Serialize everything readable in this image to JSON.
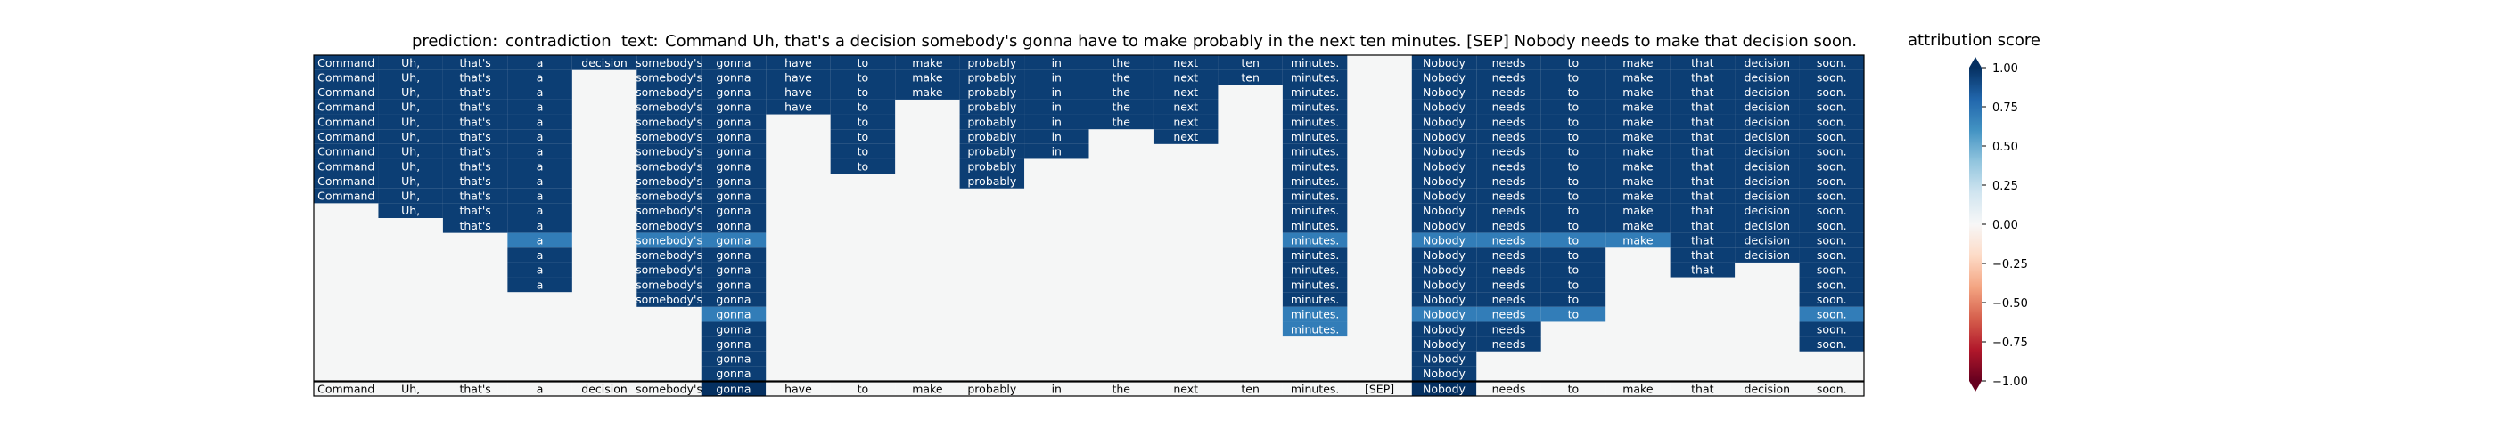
{
  "chart_data": {
    "type": "heatmap",
    "title": {
      "prediction_label": "prediction:",
      "prediction": "contradiction",
      "text_label": "text:",
      "text": "Command Uh, that's a decision somebody's gonna have to make probably in the next ten minutes. [SEP] Nobody needs to make that decision soon."
    },
    "tokens": [
      "Command",
      "Uh,",
      "that's",
      "a",
      "decision",
      "somebody's",
      "gonna",
      "have",
      "to",
      "make",
      "probably",
      "in",
      "the",
      "next",
      "ten",
      "minutes.",
      "[SEP]",
      "Nobody",
      "needs",
      "to",
      "make",
      "that",
      "decision",
      "soon."
    ],
    "rows": [
      [
        0.95,
        0.95,
        0.95,
        0.95,
        0.95,
        0.95,
        0.95,
        0.95,
        0.95,
        0.95,
        0.95,
        0.95,
        0.95,
        0.95,
        0.95,
        0.95,
        null,
        0.95,
        0.95,
        0.95,
        0.95,
        0.95,
        0.95,
        0.95
      ],
      [
        0.95,
        0.95,
        0.95,
        0.95,
        null,
        0.95,
        0.95,
        0.95,
        0.95,
        0.95,
        0.95,
        0.95,
        0.95,
        0.95,
        0.95,
        0.95,
        null,
        0.95,
        0.95,
        0.95,
        0.95,
        0.95,
        0.95,
        0.95
      ],
      [
        0.95,
        0.95,
        0.95,
        0.95,
        null,
        0.95,
        0.95,
        0.95,
        0.95,
        0.95,
        0.95,
        0.95,
        0.95,
        0.95,
        null,
        0.95,
        null,
        0.95,
        0.95,
        0.95,
        0.95,
        0.95,
        0.95,
        0.95
      ],
      [
        0.95,
        0.95,
        0.95,
        0.95,
        null,
        0.95,
        0.95,
        0.95,
        0.95,
        null,
        0.95,
        0.95,
        0.95,
        0.95,
        null,
        0.95,
        null,
        0.95,
        0.95,
        0.95,
        0.95,
        0.95,
        0.95,
        0.95
      ],
      [
        0.95,
        0.95,
        0.95,
        0.95,
        null,
        0.95,
        0.95,
        null,
        0.95,
        null,
        0.95,
        0.95,
        0.95,
        0.95,
        null,
        0.95,
        null,
        0.95,
        0.95,
        0.95,
        0.95,
        0.95,
        0.95,
        0.95
      ],
      [
        0.95,
        0.95,
        0.95,
        0.95,
        null,
        0.95,
        0.95,
        null,
        0.95,
        null,
        0.95,
        0.95,
        null,
        0.95,
        null,
        0.95,
        null,
        0.95,
        0.95,
        0.95,
        0.95,
        0.95,
        0.95,
        0.95
      ],
      [
        0.95,
        0.95,
        0.95,
        0.95,
        null,
        0.95,
        0.95,
        null,
        0.95,
        null,
        0.95,
        0.95,
        null,
        null,
        null,
        0.95,
        null,
        0.95,
        0.95,
        0.95,
        0.95,
        0.95,
        0.95,
        0.95
      ],
      [
        0.95,
        0.95,
        0.95,
        0.95,
        null,
        0.95,
        0.95,
        null,
        0.95,
        null,
        0.95,
        null,
        null,
        null,
        null,
        0.95,
        null,
        0.95,
        0.95,
        0.95,
        0.95,
        0.95,
        0.95,
        0.95
      ],
      [
        0.95,
        0.95,
        0.95,
        0.95,
        null,
        0.95,
        0.95,
        null,
        null,
        null,
        0.95,
        null,
        null,
        null,
        null,
        0.95,
        null,
        0.95,
        0.95,
        0.95,
        0.95,
        0.95,
        0.95,
        0.95
      ],
      [
        0.95,
        0.95,
        0.95,
        0.95,
        null,
        0.95,
        0.95,
        null,
        null,
        null,
        null,
        null,
        null,
        null,
        null,
        0.95,
        null,
        0.95,
        0.95,
        0.95,
        0.95,
        0.95,
        0.95,
        0.95
      ],
      [
        null,
        0.95,
        0.95,
        0.95,
        null,
        0.95,
        0.95,
        null,
        null,
        null,
        null,
        null,
        null,
        null,
        null,
        0.95,
        null,
        0.95,
        0.95,
        0.95,
        0.95,
        0.95,
        0.95,
        0.95
      ],
      [
        null,
        null,
        0.95,
        0.95,
        null,
        0.95,
        0.95,
        null,
        null,
        null,
        null,
        null,
        null,
        null,
        null,
        0.95,
        null,
        0.95,
        0.95,
        0.95,
        0.95,
        0.95,
        0.95,
        0.95
      ],
      [
        null,
        null,
        null,
        0.7,
        null,
        0.7,
        0.7,
        null,
        null,
        null,
        null,
        null,
        null,
        null,
        null,
        0.7,
        null,
        0.7,
        0.7,
        0.7,
        0.7,
        0.95,
        0.95,
        0.95
      ],
      [
        null,
        null,
        null,
        0.95,
        null,
        0.95,
        0.95,
        null,
        null,
        null,
        null,
        null,
        null,
        null,
        null,
        0.95,
        null,
        0.95,
        0.95,
        0.95,
        null,
        0.95,
        0.95,
        0.95
      ],
      [
        null,
        null,
        null,
        0.95,
        null,
        0.95,
        0.95,
        null,
        null,
        null,
        null,
        null,
        null,
        null,
        null,
        0.95,
        null,
        0.95,
        0.95,
        0.95,
        null,
        0.95,
        null,
        0.95
      ],
      [
        null,
        null,
        null,
        0.95,
        null,
        0.95,
        0.95,
        null,
        null,
        null,
        null,
        null,
        null,
        null,
        null,
        0.95,
        null,
        0.95,
        0.95,
        0.95,
        null,
        null,
        null,
        0.95
      ],
      [
        null,
        null,
        null,
        null,
        null,
        0.95,
        0.95,
        null,
        null,
        null,
        null,
        null,
        null,
        null,
        null,
        0.95,
        null,
        0.95,
        0.95,
        0.95,
        null,
        null,
        null,
        0.95
      ],
      [
        null,
        null,
        null,
        null,
        null,
        null,
        0.7,
        null,
        null,
        null,
        null,
        null,
        null,
        null,
        null,
        0.7,
        null,
        0.7,
        0.7,
        0.7,
        null,
        null,
        null,
        0.7
      ],
      [
        null,
        null,
        null,
        null,
        null,
        null,
        0.95,
        null,
        null,
        null,
        null,
        null,
        null,
        null,
        null,
        0.7,
        null,
        0.95,
        0.95,
        null,
        null,
        null,
        null,
        0.95
      ],
      [
        null,
        null,
        null,
        null,
        null,
        null,
        0.95,
        null,
        null,
        null,
        null,
        null,
        null,
        null,
        null,
        null,
        null,
        0.95,
        0.95,
        null,
        null,
        null,
        null,
        0.95
      ],
      [
        null,
        null,
        null,
        null,
        null,
        null,
        0.95,
        null,
        null,
        null,
        null,
        null,
        null,
        null,
        null,
        null,
        null,
        0.95,
        null,
        null,
        null,
        null,
        null,
        null
      ],
      [
        null,
        null,
        null,
        null,
        null,
        null,
        0.95,
        null,
        null,
        null,
        null,
        null,
        null,
        null,
        null,
        null,
        null,
        0.95,
        null,
        null,
        null,
        null,
        null,
        null
      ]
    ],
    "token_attribution": [
      0,
      0,
      0,
      0,
      0,
      0,
      1.0,
      0,
      0,
      0,
      0,
      0,
      0,
      0,
      0,
      0,
      0,
      1.0,
      0,
      0,
      0,
      0,
      0,
      0
    ],
    "colorbar": {
      "label": "attribution score",
      "ticks": [
        "1.00",
        "0.75",
        "0.50",
        "0.25",
        "0.00",
        "−0.25",
        "−0.50",
        "−0.75",
        "−1.00"
      ],
      "tick_values": [
        1.0,
        0.75,
        0.5,
        0.25,
        0.0,
        -0.25,
        -0.5,
        -0.75,
        -1.0
      ],
      "range": [
        -1,
        1
      ],
      "colormap": "RdBu"
    },
    "colors": {
      "empty_cell": "#f5f6f6",
      "axes_border": "#000000"
    }
  }
}
